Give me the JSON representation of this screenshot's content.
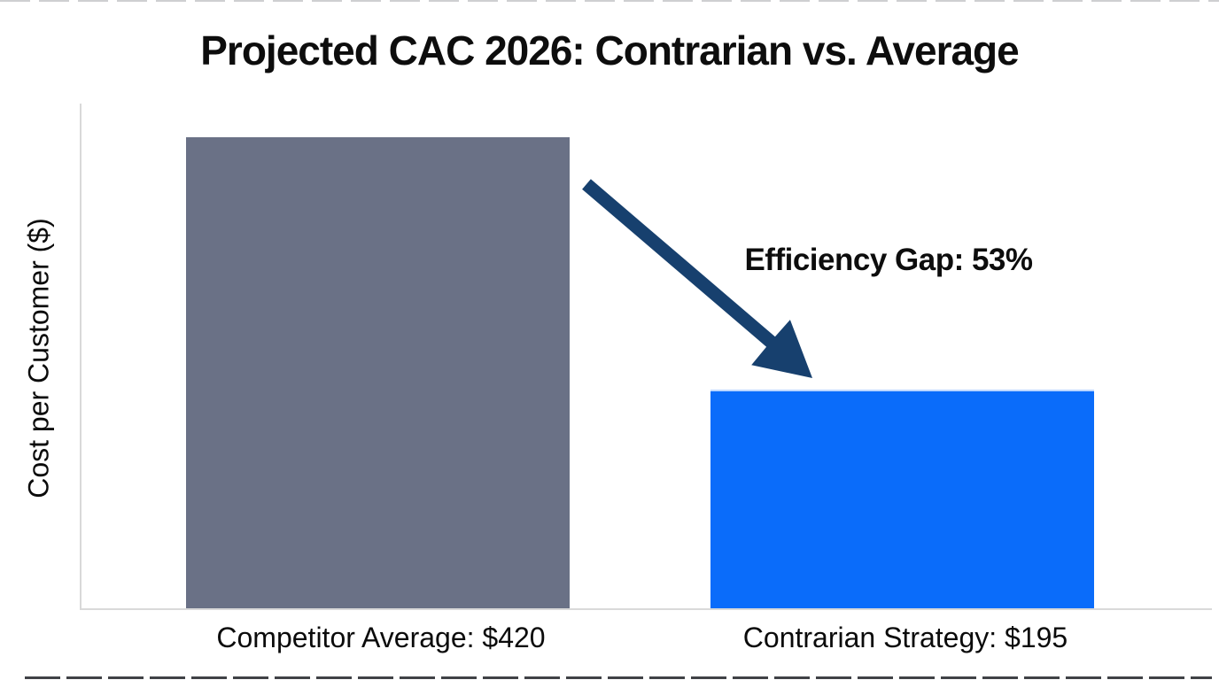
{
  "chart_data": {
    "type": "bar",
    "title": "Projected CAC 2026: Contrarian vs. Average",
    "ylabel": "Cost per Customer ($)",
    "xlabel": "",
    "categories": [
      "Competitor Average: $420",
      "Contrarian Strategy: $195"
    ],
    "values": [
      420,
      195
    ],
    "ylim": [
      0,
      450
    ],
    "bar_colors": [
      "#6a7186",
      "#0a6cfa"
    ],
    "axis_color": "#d9d9d9",
    "grid": false,
    "legend": false,
    "annotation": {
      "text": "Efficiency Gap: 53%",
      "arrow_color": "#17406e",
      "arrow_from_bar": "Competitor Average: $420",
      "arrow_to_bar": "Contrarian Strategy: $195"
    }
  }
}
